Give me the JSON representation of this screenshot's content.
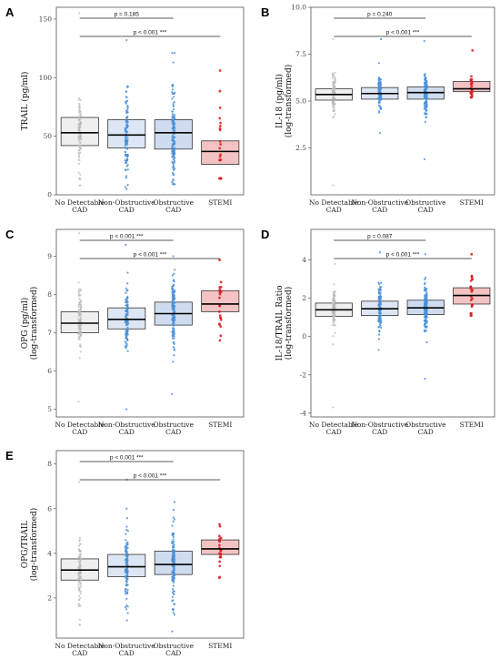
{
  "categories": [
    "No Detectable CAD",
    "Non-Obstructive CAD",
    "Obstructive CAD",
    "STEMI"
  ],
  "colors": {
    "box_fill": [
      "#efefef",
      "#dce6f4",
      "#cfdcf0",
      "#f3c3c3"
    ],
    "points": [
      "#b8b8b8",
      "#4a90d9",
      "#4a90d9",
      "#e0191d"
    ]
  },
  "chart_data": [
    {
      "type": "box",
      "panel": "A",
      "ylabel": "TRAIL (pg/ml)",
      "ylim": [
        0,
        160
      ],
      "ticks": [
        0,
        50,
        100,
        150
      ],
      "boxes": [
        {
          "q1": 42,
          "median": 53,
          "q3": 66,
          "pmin": 8,
          "pmax": 155
        },
        {
          "q1": 40,
          "median": 51,
          "q3": 64,
          "pmin": 5,
          "pmax": 132
        },
        {
          "q1": 39,
          "median": 53,
          "q3": 64,
          "pmin": 9,
          "pmax": 121
        },
        {
          "q1": 26,
          "median": 37,
          "q3": 46,
          "pmin": 14,
          "pmax": 106
        }
      ],
      "annotations": [
        {
          "text": "p = 0.185",
          "from": 0,
          "to": 2
        },
        {
          "text": "p < 0.001 ***",
          "from": 0,
          "to": 3
        }
      ]
    },
    {
      "type": "box",
      "panel": "B",
      "ylabel": "IL-18 (pg/ml)",
      "ylabel2": "(log-transformed)",
      "ylim": [
        0,
        10
      ],
      "ticks": [
        2.5,
        5.0,
        7.5,
        10.0
      ],
      "ticklabels": [
        "2.5",
        "5.0",
        "7.5",
        "10.0"
      ],
      "boxes": [
        {
          "q1": 5.05,
          "median": 5.35,
          "q3": 5.65,
          "pmin": 0.5,
          "pmax": 8.3
        },
        {
          "q1": 5.1,
          "median": 5.4,
          "q3": 5.72,
          "pmin": 3.3,
          "pmax": 8.3
        },
        {
          "q1": 5.1,
          "median": 5.45,
          "q3": 5.75,
          "pmin": 1.9,
          "pmax": 8.2
        },
        {
          "q1": 5.5,
          "median": 5.65,
          "q3": 6.05,
          "pmin": 5.2,
          "pmax": 7.7
        }
      ],
      "annotations": [
        {
          "text": "p = 0.240",
          "from": 0,
          "to": 2
        },
        {
          "text": "p < 0.001 ***",
          "from": 0,
          "to": 3
        }
      ]
    },
    {
      "type": "box",
      "panel": "C",
      "ylabel": "OPG (pg/ml)",
      "ylabel2": "(log-transformed)",
      "ylim": [
        4.8,
        9.7
      ],
      "ticks": [
        5,
        6,
        7,
        8,
        9
      ],
      "boxes": [
        {
          "q1": 7.0,
          "median": 7.25,
          "q3": 7.55,
          "pmin": 5.2,
          "pmax": 9.6
        },
        {
          "q1": 7.1,
          "median": 7.35,
          "q3": 7.65,
          "pmin": 5.0,
          "pmax": 9.3
        },
        {
          "q1": 7.2,
          "median": 7.5,
          "q3": 7.8,
          "pmin": 5.4,
          "pmax": 9.0
        },
        {
          "q1": 7.55,
          "median": 7.75,
          "q3": 8.1,
          "pmin": 6.8,
          "pmax": 8.9
        }
      ],
      "annotations": [
        {
          "text": "p < 0.001 ***",
          "from": 0,
          "to": 2
        },
        {
          "text": "p < 0.001 ***",
          "from": 0,
          "to": 3
        }
      ]
    },
    {
      "type": "box",
      "panel": "D",
      "ylabel": "IL-18/TRAIL Ratio",
      "ylabel2": "(log-transformed)",
      "ylim": [
        -4.2,
        5.6
      ],
      "ticks": [
        -4,
        -2,
        0,
        2,
        4
      ],
      "boxes": [
        {
          "q1": 1.05,
          "median": 1.4,
          "q3": 1.75,
          "pmin": -3.7,
          "pmax": 3.8
        },
        {
          "q1": 1.1,
          "median": 1.45,
          "q3": 1.85,
          "pmin": -0.7,
          "pmax": 4.4
        },
        {
          "q1": 1.15,
          "median": 1.5,
          "q3": 1.9,
          "pmin": -2.2,
          "pmax": 4.3
        },
        {
          "q1": 1.7,
          "median": 2.15,
          "q3": 2.55,
          "pmin": 1.1,
          "pmax": 4.3
        }
      ],
      "annotations": [
        {
          "text": "p = 0.087",
          "from": 0,
          "to": 2
        },
        {
          "text": "p < 0.001 ***",
          "from": 0,
          "to": 3
        }
      ]
    },
    {
      "type": "box",
      "panel": "E",
      "ylabel": "OPG/TRAIL",
      "ylabel2": "(log-transformed)",
      "ylim": [
        0.2,
        8.6
      ],
      "ticks": [
        2,
        4,
        6,
        8
      ],
      "boxes": [
        {
          "q1": 2.8,
          "median": 3.25,
          "q3": 3.75,
          "pmin": 0.8,
          "pmax": 7.2
        },
        {
          "q1": 2.95,
          "median": 3.4,
          "q3": 3.95,
          "pmin": 1.0,
          "pmax": 7.3
        },
        {
          "q1": 3.05,
          "median": 3.5,
          "q3": 4.1,
          "pmin": 0.5,
          "pmax": 6.3
        },
        {
          "q1": 3.95,
          "median": 4.2,
          "q3": 4.6,
          "pmin": 2.9,
          "pmax": 5.3
        }
      ],
      "annotations": [
        {
          "text": "p < 0.001 ***",
          "from": 0,
          "to": 2
        },
        {
          "text": "p < 0.001 ***",
          "from": 0,
          "to": 3
        }
      ]
    }
  ]
}
